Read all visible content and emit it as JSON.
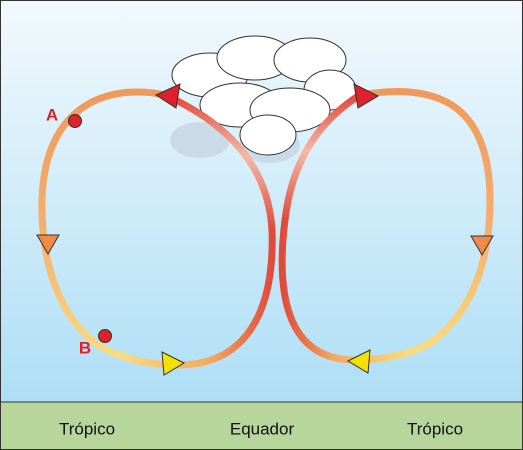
{
  "points": [
    {
      "label": "A"
    },
    {
      "label": "B"
    }
  ],
  "ground": {
    "labels": [
      "Trópico",
      "Equador",
      "Trópico"
    ]
  }
}
